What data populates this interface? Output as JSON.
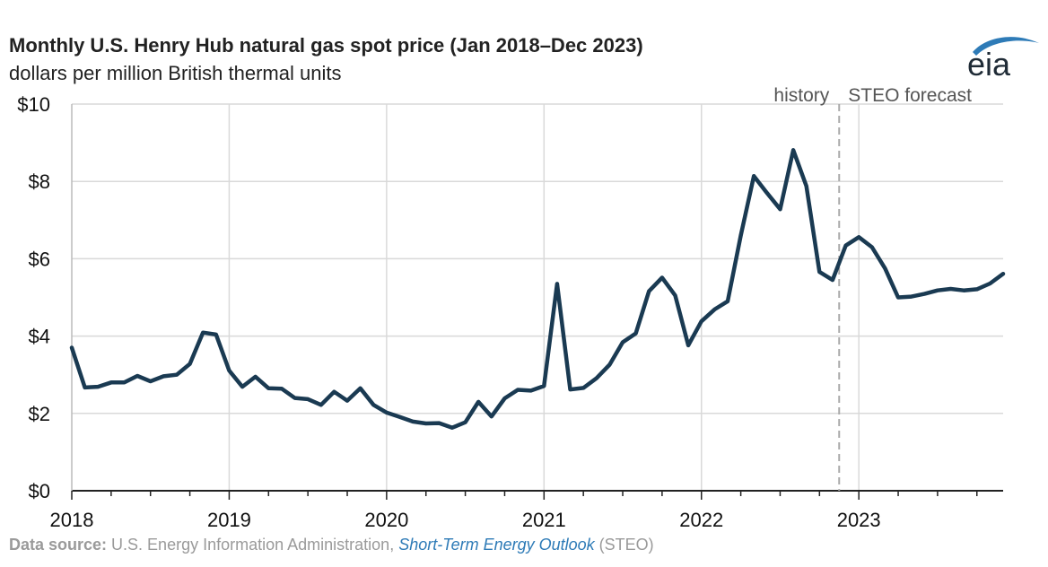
{
  "title": "Monthly U.S. Henry Hub natural gas spot price (Jan 2018–Dec 2023)",
  "subtitle": "dollars per million British thermal units",
  "logo_text": "eia",
  "source": {
    "label": "Data source:",
    "text": " U.S. Energy Information Administration, ",
    "link": "Short-Term Energy Outlook",
    "suffix": " (STEO)"
  },
  "colors": {
    "line": "#1a3a52",
    "grid": "#d9d9d9",
    "divider": "#aaaaaa",
    "logo": "#2e7bb7"
  },
  "chart_data": {
    "type": "line",
    "title": "Monthly U.S. Henry Hub natural gas spot price (Jan 2018–Dec 2023)",
    "ylabel": "dollars per million British thermal units",
    "ylim": [
      0,
      10
    ],
    "yticks": [
      0,
      2,
      4,
      6,
      8,
      10
    ],
    "ytick_labels": [
      "$0",
      "$2",
      "$4",
      "$6",
      "$8",
      "$10"
    ],
    "xticks": [
      "2018",
      "2019",
      "2020",
      "2021",
      "2022",
      "2023"
    ],
    "x_start": "2018-01",
    "grid": true,
    "annotations": {
      "left": "history",
      "right": "STEO forecast",
      "divider_at": "2022-11"
    },
    "series": [
      {
        "values": [
          3.7,
          2.67,
          2.69,
          2.8,
          2.8,
          2.97,
          2.83,
          2.96,
          3.0,
          3.28,
          4.09,
          4.04,
          3.11,
          2.69,
          2.95,
          2.65,
          2.64,
          2.4,
          2.37,
          2.22,
          2.56,
          2.33,
          2.65,
          2.22,
          2.02,
          1.91,
          1.79,
          1.74,
          1.75,
          1.63,
          1.77,
          2.3,
          1.92,
          2.39,
          2.61,
          2.59,
          2.71,
          5.35,
          2.62,
          2.66,
          2.91,
          3.26,
          3.84,
          4.07,
          5.16,
          5.51,
          5.05,
          3.76,
          4.38,
          4.69,
          4.9,
          6.6,
          8.14,
          7.7,
          7.28,
          8.81,
          7.88,
          5.66,
          5.45,
          6.34,
          6.56,
          6.3,
          5.75,
          5.0,
          5.02,
          5.09,
          5.18,
          5.22,
          5.18,
          5.21,
          5.36,
          5.61
        ]
      }
    ]
  }
}
